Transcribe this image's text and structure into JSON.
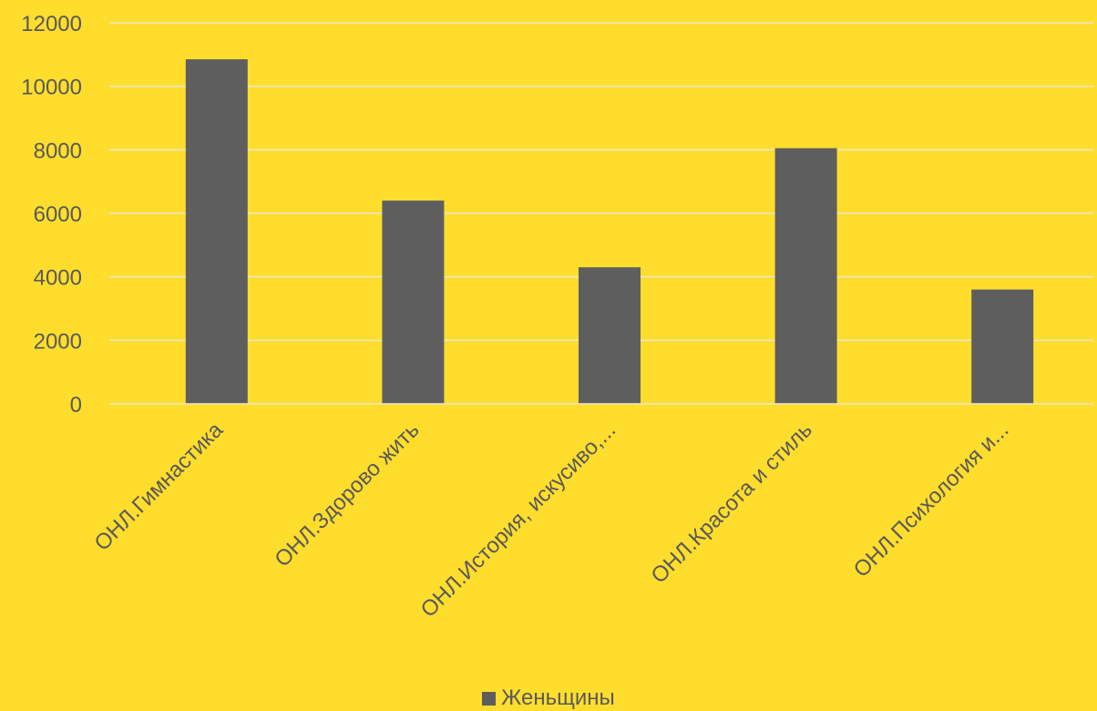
{
  "chart_data": {
    "type": "bar",
    "categories": [
      "ОНЛ.Гимнастика",
      "ОНЛ.Здорово жить",
      "ОНЛ.История, искусиво,...",
      "ОНЛ.Красота и стиль",
      "ОНЛ.Психология и..."
    ],
    "series": [
      {
        "name": "Женьщины",
        "values": [
          10850,
          6400,
          4300,
          8050,
          3600
        ],
        "color": "#5E5E5E"
      }
    ],
    "ylim": [
      0,
      12000
    ],
    "yticks": [
      "0",
      "2000",
      "4000",
      "6000",
      "8000",
      "10000",
      "12000"
    ],
    "grid": true,
    "legend_position": "bottom",
    "background_color": "#FFDD2D",
    "gridline_color": "#E9E7D0",
    "text_color": "#595959"
  }
}
